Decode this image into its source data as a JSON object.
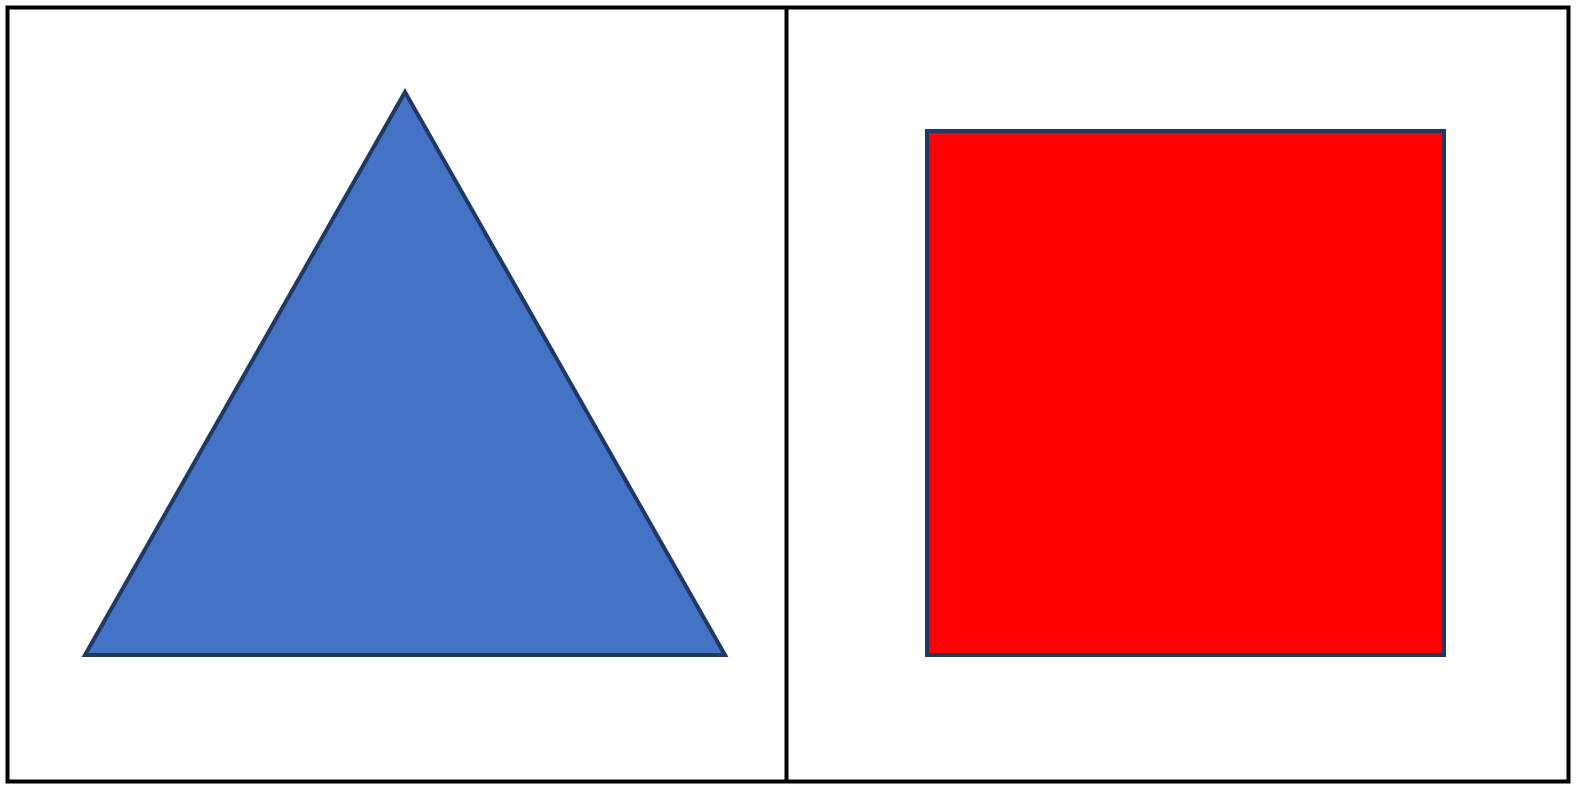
{
  "colors": {
    "background": "#ffffff",
    "frame": "#000000",
    "shape_outline": "#1f3864",
    "triangle_fill": "#4472c4",
    "square_fill": "#ff0000"
  },
  "panels": [
    {
      "id": "left",
      "shape": "triangle"
    },
    {
      "id": "right",
      "shape": "square"
    }
  ]
}
